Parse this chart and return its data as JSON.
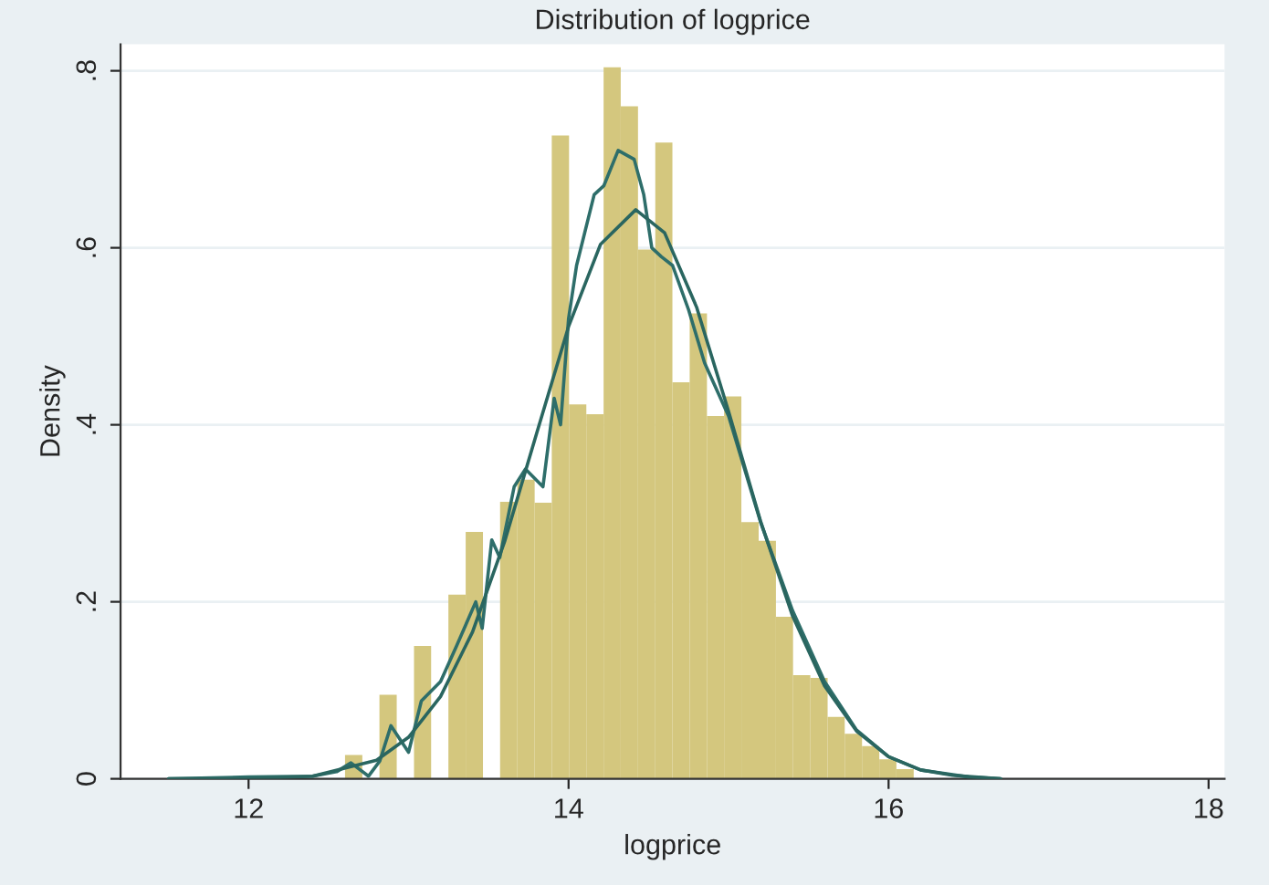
{
  "chart_data": {
    "type": "histogram",
    "title": "Distribution of logprice",
    "xlabel": "logprice",
    "ylabel": "Density",
    "bins": [
      12.603,
      12.711,
      12.818,
      12.926,
      13.034,
      13.141,
      13.249,
      13.357,
      13.465,
      13.572,
      13.68,
      13.788,
      13.895,
      14.003,
      14.111,
      14.219,
      14.326,
      14.434,
      14.542,
      14.649,
      14.757,
      14.865,
      14.972,
      15.08,
      15.188,
      15.296,
      15.403,
      15.511,
      15.619,
      15.726,
      15.834,
      15.942,
      16.049,
      16.157
    ],
    "values": [
      0.027,
      0,
      0.095,
      0,
      0.15,
      0,
      0.208,
      0.279,
      0,
      0.313,
      0.338,
      0.312,
      0.727,
      0.423,
      0.412,
      0.804,
      0.76,
      0.598,
      0.719,
      0.448,
      0.526,
      0.41,
      0.432,
      0.29,
      0.269,
      0.183,
      0.117,
      0.114,
      0.07,
      0.051,
      0.037,
      0.022,
      0.011
    ],
    "color": "#d4c77e",
    "series": [
      {
        "type": "line",
        "color": "#2e6e6a",
        "x": [
          11.5,
          12.0,
          12.4,
          12.55,
          12.64,
          12.75,
          12.82,
          12.89,
          13.0,
          13.08,
          13.2,
          13.3,
          13.42,
          13.46,
          13.52,
          13.57,
          13.66,
          13.73,
          13.84,
          13.91,
          13.95,
          14.0,
          14.05,
          14.16,
          14.22,
          14.31,
          14.41,
          14.47,
          14.52,
          14.58,
          14.65,
          14.75,
          14.85,
          15.0,
          15.2,
          15.4,
          15.6,
          15.8,
          16.0,
          16.2,
          16.5,
          16.7
        ],
        "values": [
          0,
          0.002,
          0.003,
          0.008,
          0.018,
          0.003,
          0.02,
          0.06,
          0.03,
          0.088,
          0.11,
          0.15,
          0.2,
          0.17,
          0.27,
          0.25,
          0.33,
          0.35,
          0.33,
          0.43,
          0.4,
          0.52,
          0.58,
          0.66,
          0.67,
          0.71,
          0.7,
          0.66,
          0.6,
          0.59,
          0.58,
          0.53,
          0.47,
          0.41,
          0.29,
          0.19,
          0.11,
          0.055,
          0.025,
          0.01,
          0.002,
          0
        ]
      },
      {
        "type": "line",
        "color": "#2a6660",
        "x": [
          11.5,
          12.0,
          12.4,
          12.8,
          13.0,
          13.2,
          13.4,
          13.6,
          13.8,
          14.0,
          14.2,
          14.42,
          14.6,
          14.8,
          15.0,
          15.2,
          15.4,
          15.6,
          15.8,
          16.0,
          16.2,
          16.4,
          16.7
        ],
        "values": [
          0,
          0,
          0.003,
          0.021,
          0.047,
          0.093,
          0.166,
          0.268,
          0.39,
          0.511,
          0.604,
          0.643,
          0.617,
          0.533,
          0.415,
          0.291,
          0.184,
          0.105,
          0.054,
          0.025,
          0.01,
          0.004,
          0
        ]
      }
    ],
    "xlim": [
      11.2,
      18.1
    ],
    "xticks": [
      12,
      14,
      16,
      18
    ],
    "ylim": [
      0,
      0.83
    ],
    "yticks": [
      0,
      {
        "value": 0.2,
        "label": ".2"
      },
      {
        "value": 0.4,
        "label": ".4"
      },
      {
        "value": 0.6,
        "label": ".6"
      },
      {
        "value": 0.8,
        "label": ".8"
      }
    ],
    "grid": "y",
    "legend": false
  }
}
